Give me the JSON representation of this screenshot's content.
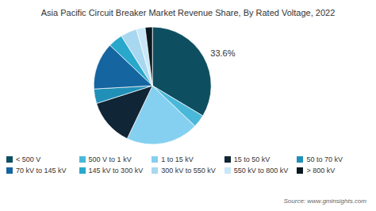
{
  "chart_data": {
    "type": "pie",
    "title": "Asia Pacific Circuit Breaker Market Revenue Share, By Rated Voltage, 2022",
    "categories": [
      "< 500 V",
      "500 V to 1 kV",
      "1 to 15 kV",
      "15 to 50 kV",
      "50 to 70 kV",
      "70 kV to 145 kV",
      "145 kV to 300 kV",
      "300 kV to 550 kV",
      "550 kV to 800 kV",
      "> 800 kV"
    ],
    "values": [
      33.6,
      3.5,
      20.0,
      13.0,
      4.0,
      13.0,
      4.0,
      4.5,
      2.4,
      2.0
    ],
    "colors": [
      "#0d4f60",
      "#4ab8d8",
      "#85d0f0",
      "#102535",
      "#2090b8",
      "#1565a0",
      "#2aa8cc",
      "#a8d8f0",
      "#c8e8f8",
      "#0a1820"
    ],
    "legend": "bottom",
    "annotations": [
      {
        "text": "33.6%",
        "category": "< 500 V"
      },
      {
        "text": "Source: www.gminsights.com"
      }
    ]
  }
}
